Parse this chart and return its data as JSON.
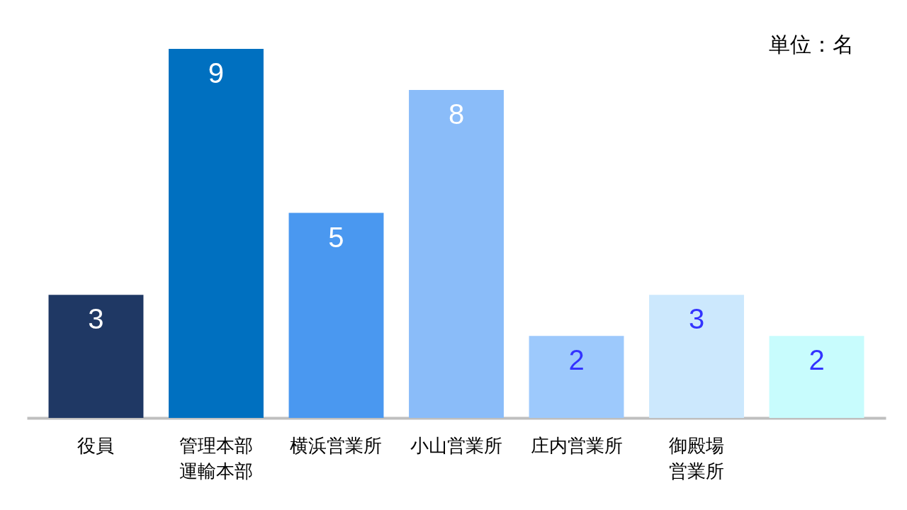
{
  "chart_data": {
    "type": "bar",
    "categories": [
      "役員",
      "管理本部運輸本部",
      "横浜営業所",
      "小山営業所",
      "庄内営業所",
      "御殿場営業所",
      null
    ],
    "values": [
      3,
      9,
      5,
      8,
      2,
      3,
      2
    ],
    "colors": [
      "#1f3864",
      "#0070c0",
      "#4a98f0",
      "#8abcf9",
      "#9dc9fc",
      "#cce8fd",
      "#c8fcfd"
    ],
    "data_labels": true,
    "annotations": [
      "単位：名"
    ]
  }
}
